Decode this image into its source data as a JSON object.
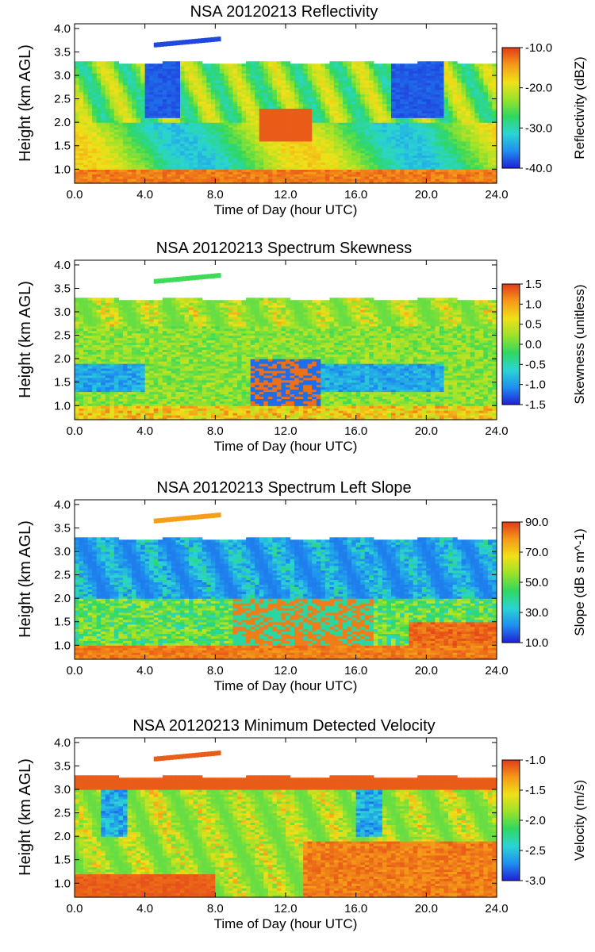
{
  "colors": {
    "background": "#ffffff",
    "axis": "#000000",
    "no_data": "#ffffff"
  },
  "colormap": [
    "#2020d8",
    "#1f8ff0",
    "#2ad4d4",
    "#2fd860",
    "#9be22a",
    "#f0e018",
    "#f59a18",
    "#e23a1a"
  ],
  "chart_data": [
    {
      "type": "heatmap",
      "title": "NSA 20120213 Reflectivity",
      "xlabel": "Time of Day (hour UTC)",
      "ylabel": "Height (km AGL)",
      "xlim": [
        0,
        24
      ],
      "ylim": [
        0.7,
        4.1
      ],
      "xticks": [
        "0.0",
        "4.0",
        "8.0",
        "12.0",
        "16.0",
        "20.0",
        "24.0"
      ],
      "yticks": [
        "1.0",
        "1.5",
        "2.0",
        "2.5",
        "3.0",
        "3.5",
        "4.0"
      ],
      "colorbar": {
        "label": "Reflectivity (dBZ)",
        "range": [
          -40,
          -10
        ],
        "ticks": [
          "-10.0",
          "-20.0",
          "-30.0",
          "-40.0"
        ]
      },
      "cloud_top_km": 3.25,
      "fields": [
        "reflectivity"
      ]
    },
    {
      "type": "heatmap",
      "title": "NSA 20120213 Spectrum Skewness",
      "xlabel": "Time of Day (hour UTC)",
      "ylabel": "Height (km AGL)",
      "xlim": [
        0,
        24
      ],
      "ylim": [
        0.7,
        4.1
      ],
      "xticks": [
        "0.0",
        "4.0",
        "8.0",
        "12.0",
        "16.0",
        "20.0",
        "24.0"
      ],
      "yticks": [
        "1.0",
        "1.5",
        "2.0",
        "2.5",
        "3.0",
        "3.5",
        "4.0"
      ],
      "colorbar": {
        "label": "Skewness (unitless)",
        "range": [
          -1.5,
          1.5
        ],
        "ticks": [
          "1.5",
          "1.0",
          "0.5",
          "0.0",
          "-0.5",
          "-1.0",
          "-1.5"
        ]
      },
      "cloud_top_km": 3.25,
      "fields": [
        "skewness"
      ]
    },
    {
      "type": "heatmap",
      "title": "NSA 20120213 Spectrum Left Slope",
      "xlabel": "Time of Day (hour UTC)",
      "ylabel": "Height (km AGL)",
      "xlim": [
        0,
        24
      ],
      "ylim": [
        0.7,
        4.1
      ],
      "xticks": [
        "0.0",
        "4.0",
        "8.0",
        "12.0",
        "16.0",
        "20.0",
        "24.0"
      ],
      "yticks": [
        "1.0",
        "1.5",
        "2.0",
        "2.5",
        "3.0",
        "3.5",
        "4.0"
      ],
      "colorbar": {
        "label": "Slope (dB s m^-1)",
        "range": [
          10,
          90
        ],
        "ticks": [
          "90.0",
          "70.0",
          "50.0",
          "30.0",
          "10.0"
        ]
      },
      "cloud_top_km": 3.25,
      "fields": [
        "left_slope"
      ]
    },
    {
      "type": "heatmap",
      "title": "NSA 20120213 Minimum Detected Velocity",
      "xlabel": "Time of Day (hour UTC)",
      "ylabel": "Height (km AGL)",
      "xlim": [
        0,
        24
      ],
      "ylim": [
        0.7,
        4.1
      ],
      "xticks": [
        "0.0",
        "4.0",
        "8.0",
        "12.0",
        "16.0",
        "20.0",
        "24.0"
      ],
      "yticks": [
        "1.0",
        "1.5",
        "2.0",
        "2.5",
        "3.0",
        "3.5",
        "4.0"
      ],
      "colorbar": {
        "label": "Velocity (m/s)",
        "range": [
          -3,
          -1
        ],
        "ticks": [
          "-1.0",
          "-1.5",
          "-2.0",
          "-2.5",
          "-3.0"
        ]
      },
      "cloud_top_km": 3.25,
      "fields": [
        "min_velocity"
      ]
    }
  ]
}
